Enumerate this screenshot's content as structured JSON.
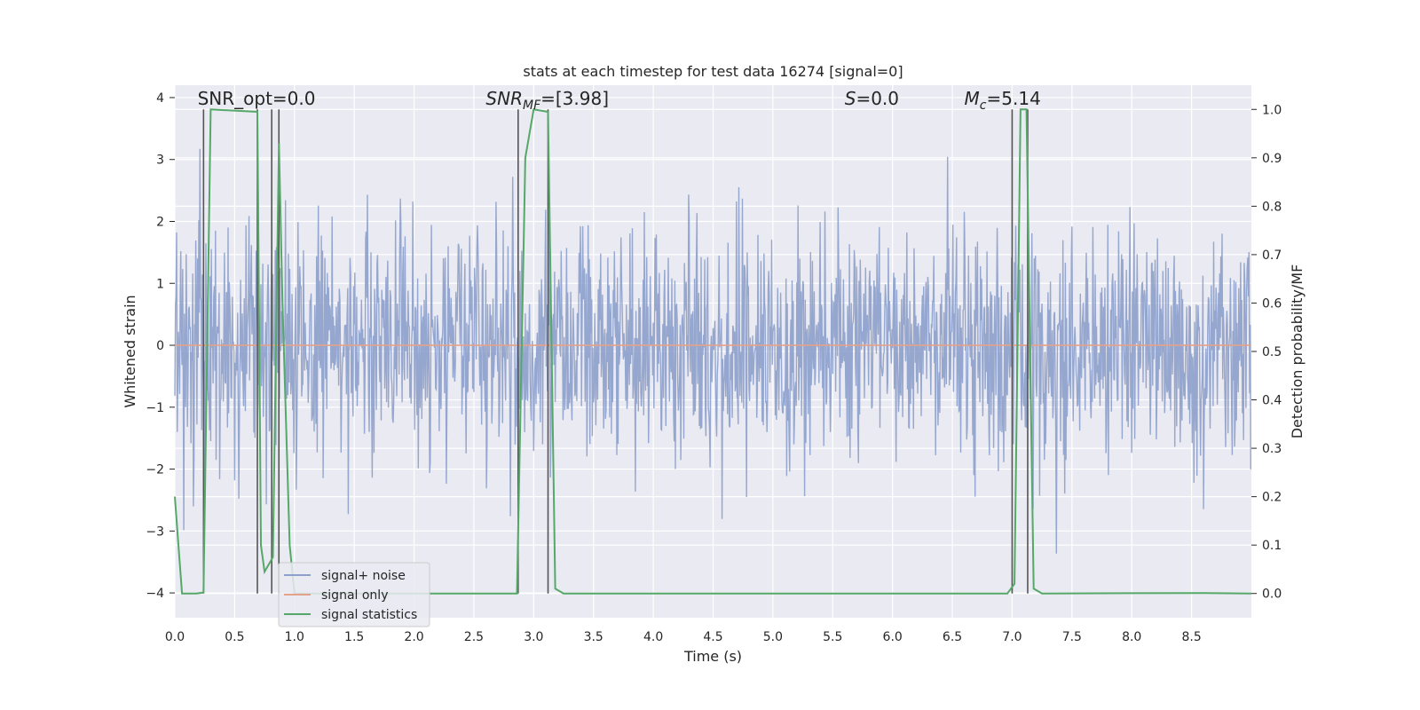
{
  "chart_data": {
    "type": "line",
    "title": "stats at each timestep for test data 16274 [signal=0]",
    "xlabel": "Time (s)",
    "ylabel": "Whitened strain",
    "y2label": "Detection probability/MF",
    "xlim": [
      0.0,
      9.0
    ],
    "ylim": [
      -4.4,
      4.2
    ],
    "y2lim": [
      -0.05,
      1.05
    ],
    "x_ticks": [
      "0.0",
      "0.5",
      "1.0",
      "1.5",
      "2.0",
      "2.5",
      "3.0",
      "3.5",
      "4.0",
      "4.5",
      "5.0",
      "5.5",
      "6.0",
      "6.5",
      "7.0",
      "7.5",
      "8.0",
      "8.5"
    ],
    "y_ticks": [
      "4",
      "3",
      "2",
      "1",
      "0",
      "−1",
      "−2",
      "−3",
      "−4"
    ],
    "y2_ticks": [
      "1.0",
      "0.9",
      "0.8",
      "0.7",
      "0.6",
      "0.5",
      "0.4",
      "0.3",
      "0.2",
      "0.1",
      "0.0"
    ],
    "grid": true,
    "legend_position": "lower-left",
    "annotations": [
      {
        "label": "SNR_opt=0.0",
        "x": 0.19,
        "y2": 1.01
      },
      {
        "label": "SNR_MF=[3.98]",
        "x": 2.6,
        "y2": 1.01
      },
      {
        "label": "S=0.0",
        "x": 5.6,
        "y2": 1.01
      },
      {
        "label": "M_c=5.14",
        "x": 6.6,
        "y2": 1.01
      }
    ],
    "vertical_lines_x": [
      0.24,
      0.69,
      0.81,
      0.87,
      2.87,
      3.12,
      7.0,
      7.13
    ],
    "series": [
      {
        "name": "signal+ noise",
        "color": "#8da0cb",
        "description_type": "noise",
        "amplitude_sd": 0.95,
        "spike_max": 3.5,
        "spike_min": -4.0
      },
      {
        "name": "signal only",
        "color": "#e5a18a",
        "x": [
          0.0,
          9.0
        ],
        "y": [
          0.0,
          0.0
        ]
      },
      {
        "name": "signal statistics",
        "color": "#55a868",
        "axis": "right",
        "x": [
          0.0,
          0.06,
          0.18,
          0.24,
          0.3,
          0.69,
          0.72,
          0.75,
          0.82,
          0.87,
          0.9,
          0.96,
          1.0,
          2.86,
          2.93,
          3.0,
          3.12,
          3.18,
          3.25,
          6.96,
          7.02,
          7.07,
          7.12,
          7.18,
          7.25,
          8.6,
          9.0
        ],
        "y": [
          0.2,
          0.0,
          0.0,
          0.002,
          1.0,
          0.995,
          0.1,
          0.045,
          0.075,
          0.93,
          0.6,
          0.1,
          0.0,
          0.0,
          0.9,
          1.0,
          0.995,
          0.01,
          0.0,
          0.0,
          0.02,
          1.0,
          1.0,
          0.01,
          0.0,
          0.001,
          0.0
        ]
      }
    ]
  }
}
